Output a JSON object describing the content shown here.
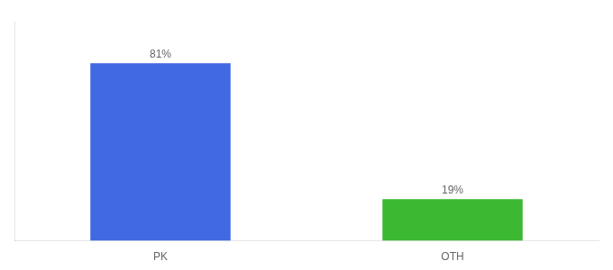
{
  "chart_data": {
    "type": "bar",
    "categories": [
      "PK",
      "OTH"
    ],
    "values": [
      81,
      19
    ],
    "value_labels": [
      "81%",
      "19%"
    ],
    "colors": [
      "#4169E1",
      "#3CB832"
    ],
    "ylim": [
      0,
      100
    ],
    "yticks": [],
    "tick_labels": "x",
    "data_labels": true,
    "grid": false
  }
}
